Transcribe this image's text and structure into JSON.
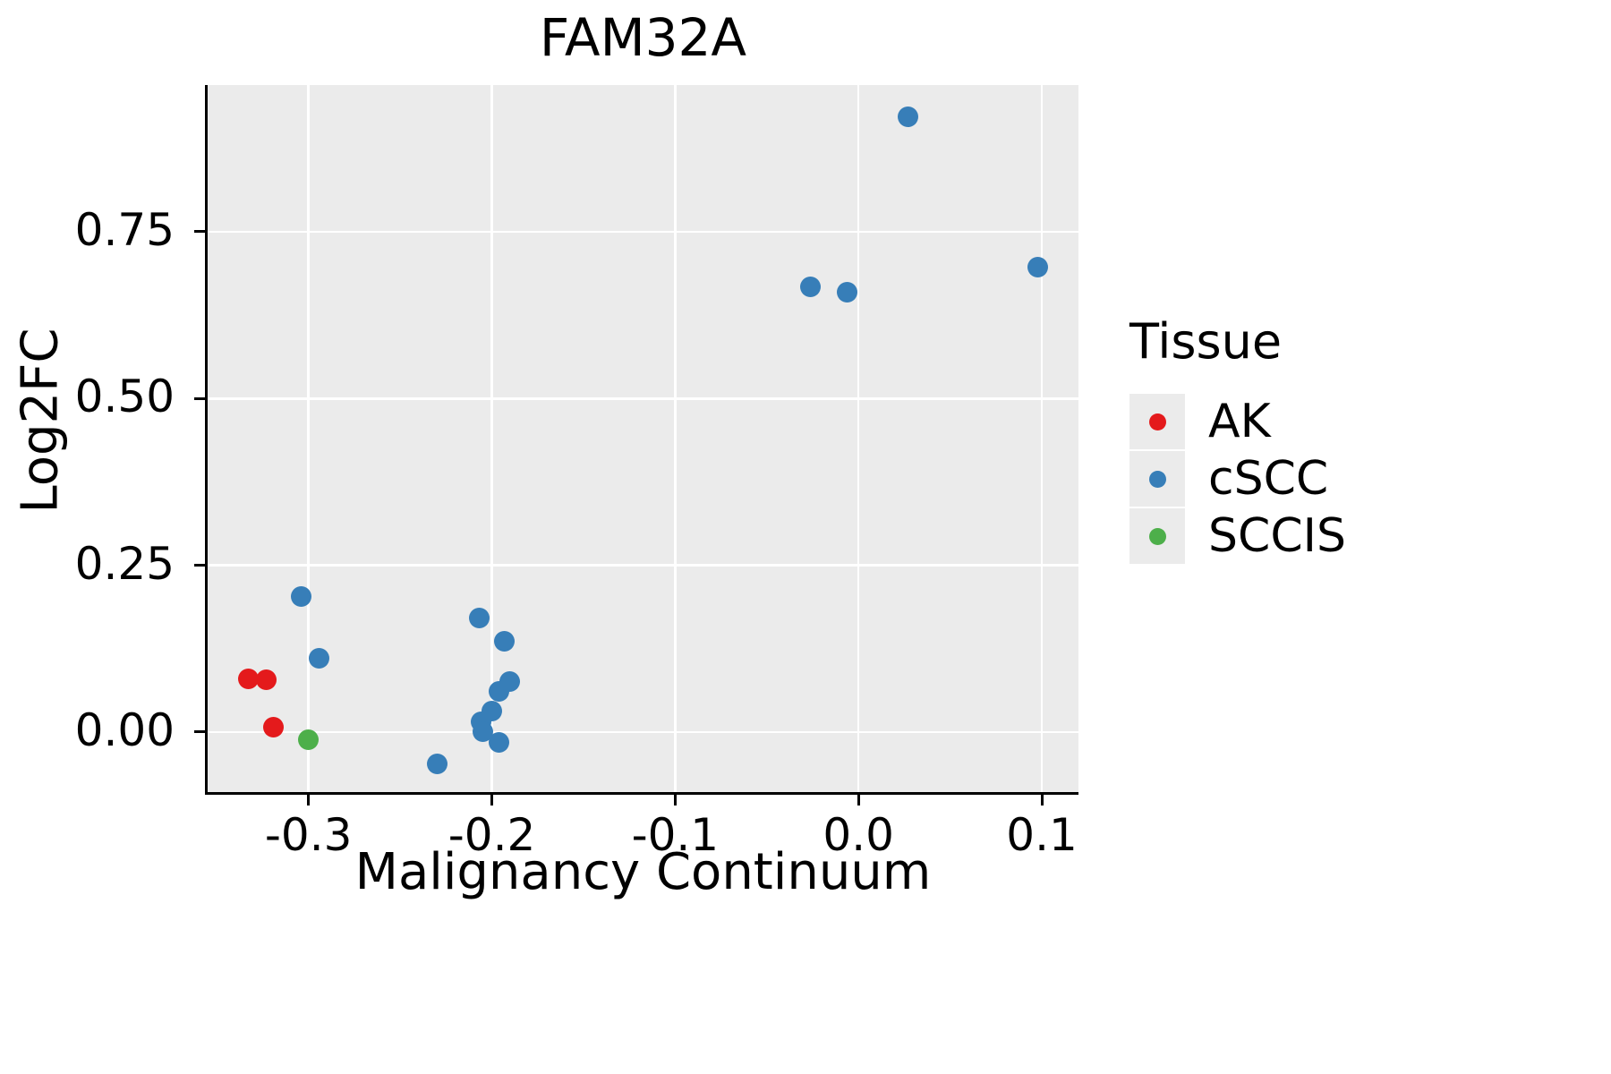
{
  "chart_data": {
    "type": "scatter",
    "title": "FAM32A",
    "xlabel": "Malignancy Continuum",
    "ylabel": "Log2FC",
    "legend_title": "Tissue",
    "legend_position": "right",
    "panel_background": "#EBEBEB",
    "grid_color": "#FFFFFF",
    "axis_color": "#000000",
    "text_color": "#000000",
    "grid": "major",
    "xlim": [
      -0.355,
      0.12
    ],
    "ylim": [
      -0.09,
      0.97
    ],
    "xticks": [
      {
        "value": -0.3,
        "label": "-0.3"
      },
      {
        "value": -0.2,
        "label": "-0.2"
      },
      {
        "value": -0.1,
        "label": "-0.1"
      },
      {
        "value": 0.0,
        "label": "0.0"
      },
      {
        "value": 0.1,
        "label": "0.1"
      }
    ],
    "yticks": [
      {
        "value": 0.0,
        "label": "0.00"
      },
      {
        "value": 0.25,
        "label": "0.25"
      },
      {
        "value": 0.5,
        "label": "0.50"
      },
      {
        "value": 0.75,
        "label": "0.75"
      }
    ],
    "series": [
      {
        "name": "AK",
        "color": "#E41A1C",
        "points": [
          [
            -0.333,
            0.08
          ],
          [
            -0.323,
            0.079
          ],
          [
            -0.319,
            0.007
          ]
        ]
      },
      {
        "name": "cSCC",
        "color": "#377EB8",
        "points": [
          [
            -0.304,
            0.203
          ],
          [
            -0.294,
            0.111
          ],
          [
            -0.23,
            -0.048
          ],
          [
            -0.207,
            0.171
          ],
          [
            -0.206,
            0.016
          ],
          [
            -0.205,
            0.0
          ],
          [
            -0.2,
            0.032
          ],
          [
            -0.196,
            0.061
          ],
          [
            -0.196,
            -0.016
          ],
          [
            -0.193,
            0.136
          ],
          [
            -0.19,
            0.076
          ],
          [
            -0.026,
            0.667
          ],
          [
            -0.006,
            0.66
          ],
          [
            0.027,
            0.922
          ],
          [
            0.098,
            0.697
          ]
        ]
      },
      {
        "name": "SCCIS",
        "color": "#4DAF4A",
        "points": [
          [
            -0.3,
            -0.011
          ]
        ]
      }
    ]
  }
}
